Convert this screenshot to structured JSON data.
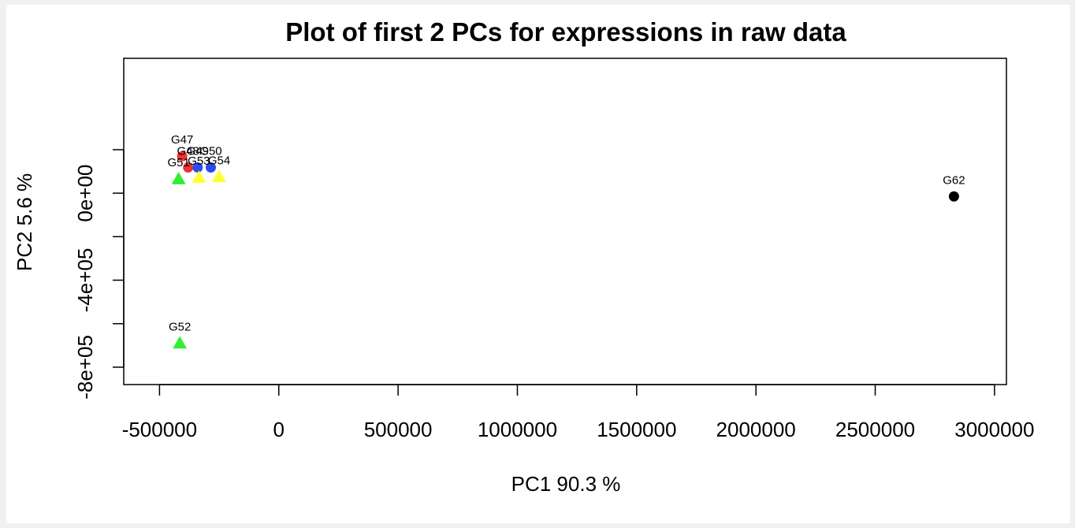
{
  "chart_data": {
    "type": "scatter",
    "title": "Plot of first 2 PCs for expressions in raw data",
    "xlabel": "PC1 90.3 %",
    "ylabel": "PC2 5.6 %",
    "xlim": [
      -650000,
      3050000
    ],
    "ylim": [
      -880000,
      620000
    ],
    "x_ticks": [
      -500000,
      0,
      500000,
      1000000,
      1500000,
      2000000,
      2500000,
      3000000
    ],
    "x_tick_labels": [
      "-500000",
      "0",
      "500000",
      "1000000",
      "1500000",
      "2000000",
      "2500000",
      "3000000"
    ],
    "y_ticks": [
      -800000,
      -600000,
      -400000,
      -200000,
      0,
      200000
    ],
    "y_tick_labels": [
      "-8e+05",
      "",
      "-4e+05",
      "",
      "0e+00",
      ""
    ],
    "grid": false,
    "legend": "none",
    "points": [
      {
        "label": "G47",
        "x": -405000,
        "y": 170000,
        "shape": "circle",
        "color": "#ee3333"
      },
      {
        "label": "G48",
        "x": -380000,
        "y": 118000,
        "shape": "circle",
        "color": "#ee3333"
      },
      {
        "label": "G49",
        "x": -340000,
        "y": 118000,
        "shape": "circle",
        "color": "#2a4de8"
      },
      {
        "label": "G50",
        "x": -285000,
        "y": 118000,
        "shape": "circle",
        "color": "#2a4de8"
      },
      {
        "label": "G51",
        "x": -420000,
        "y": 65000,
        "shape": "triangle",
        "color": "#33ee33"
      },
      {
        "label": "G53",
        "x": -335000,
        "y": 72000,
        "shape": "triangle",
        "color": "#ffff33"
      },
      {
        "label": "G54",
        "x": -250000,
        "y": 75000,
        "shape": "triangle",
        "color": "#ffff33"
      },
      {
        "label": "G52",
        "x": -415000,
        "y": -690000,
        "shape": "triangle",
        "color": "#33ee33"
      },
      {
        "label": "G62",
        "x": 2830000,
        "y": -15000,
        "shape": "circle",
        "color": "#000000"
      }
    ]
  }
}
